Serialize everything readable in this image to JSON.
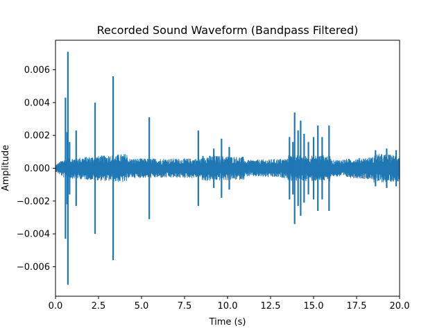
{
  "chart_data": {
    "type": "line",
    "title": "Recorded Sound Waveform (Bandpass Filtered)",
    "xlabel": "Time (s)",
    "ylabel": "Amplitude",
    "xlim": [
      0,
      20
    ],
    "ylim": [
      -0.0078,
      0.0078
    ],
    "x_ticks": [
      0.0,
      2.5,
      5.0,
      7.5,
      10.0,
      12.5,
      15.0,
      17.5,
      20.0
    ],
    "x_tick_labels": [
      "0.0",
      "2.5",
      "5.0",
      "7.5",
      "10.0",
      "12.5",
      "15.0",
      "17.5",
      "20.0"
    ],
    "y_ticks": [
      -0.006,
      -0.004,
      -0.002,
      0.0,
      0.002,
      0.004,
      0.006
    ],
    "y_tick_labels": [
      "−0.006",
      "−0.004",
      "−0.002",
      "0.000",
      "0.002",
      "0.004",
      "0.006"
    ],
    "grid": false,
    "series": [
      {
        "color": "#1f77b4",
        "envelope_note_free": true,
        "baseline_segments": [
          {
            "t": [
              0.0,
              0.5
            ],
            "amp": [
              0.0002,
              0.0006
            ]
          },
          {
            "t": [
              0.5,
              4.2
            ],
            "amp": [
              0.0006,
              0.0009
            ]
          },
          {
            "t": [
              4.2,
              6.0
            ],
            "amp": [
              0.0006,
              0.0006
            ]
          },
          {
            "t": [
              6.0,
              8.5
            ],
            "amp": [
              0.0006,
              0.0006
            ]
          },
          {
            "t": [
              8.5,
              11.0
            ],
            "amp": [
              0.0008,
              0.0007
            ]
          },
          {
            "t": [
              11.0,
              13.5
            ],
            "amp": [
              0.0005,
              0.0006
            ]
          },
          {
            "t": [
              13.5,
              16.0
            ],
            "amp": [
              0.0008,
              0.0008
            ]
          },
          {
            "t": [
              16.0,
              18.5
            ],
            "amp": [
              0.0005,
              0.0007
            ]
          },
          {
            "t": [
              18.5,
              20.0
            ],
            "amp": [
              0.0009,
              0.0008
            ]
          }
        ],
        "spikes": [
          {
            "t": 0.58,
            "max": 0.0043,
            "min": -0.0043
          },
          {
            "t": 0.68,
            "max": 0.0022,
            "min": -0.0022
          },
          {
            "t": 0.72,
            "max": 0.0071,
            "min": -0.0071
          },
          {
            "t": 0.82,
            "max": 0.0016,
            "min": -0.0016
          },
          {
            "t": 1.2,
            "max": 0.0023,
            "min": -0.0023
          },
          {
            "t": 2.3,
            "max": 0.004,
            "min": -0.004
          },
          {
            "t": 3.35,
            "max": 0.0056,
            "min": -0.0056
          },
          {
            "t": 5.45,
            "max": 0.0031,
            "min": -0.0031
          },
          {
            "t": 8.3,
            "max": 0.0023,
            "min": -0.0023
          },
          {
            "t": 9.2,
            "max": 0.0012,
            "min": -0.0012
          },
          {
            "t": 9.65,
            "max": 0.0018,
            "min": -0.0018
          },
          {
            "t": 10.1,
            "max": 0.0013,
            "min": -0.0013
          },
          {
            "t": 13.6,
            "max": 0.0019,
            "min": -0.0019
          },
          {
            "t": 13.8,
            "max": 0.0016,
            "min": -0.0016
          },
          {
            "t": 13.9,
            "max": 0.0034,
            "min": -0.0034
          },
          {
            "t": 14.1,
            "max": 0.0023,
            "min": -0.0023
          },
          {
            "t": 14.25,
            "max": 0.0029,
            "min": -0.0029
          },
          {
            "t": 14.45,
            "max": 0.0021,
            "min": -0.0021
          },
          {
            "t": 14.7,
            "max": 0.0016,
            "min": -0.0016
          },
          {
            "t": 15.0,
            "max": 0.0019,
            "min": -0.0019
          },
          {
            "t": 15.25,
            "max": 0.0026,
            "min": -0.0026
          },
          {
            "t": 15.5,
            "max": 0.0019,
            "min": -0.0019
          },
          {
            "t": 15.9,
            "max": 0.0026,
            "min": -0.0026
          },
          {
            "t": 18.6,
            "max": 0.0011,
            "min": -0.0011
          },
          {
            "t": 19.25,
            "max": 0.0012,
            "min": -0.0012
          },
          {
            "t": 19.8,
            "max": 0.0011,
            "min": -0.0011
          }
        ]
      }
    ]
  }
}
